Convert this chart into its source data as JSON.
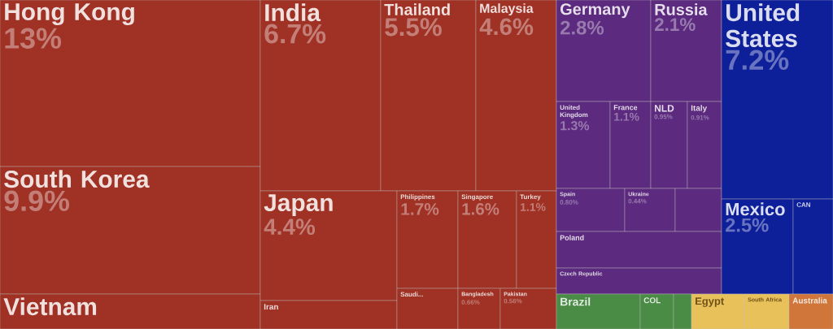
{
  "chart_data": {
    "type": "other",
    "categories": [
      "Hong Kong",
      "South Korea",
      "Vietnam",
      "India",
      "Thailand",
      "Malaysia",
      "Japan",
      "Philippines",
      "Singapore",
      "Turkey",
      "Iran",
      "Saudi...",
      "Bangladesh",
      "Pakistan",
      "Germany",
      "Russia",
      "United Kingdom",
      "France",
      "NLD",
      "Italy",
      "Spain",
      "Ukraine",
      null,
      "Poland",
      "Czech Republic",
      "United States",
      "Mexico",
      "CAN",
      "Brazil",
      "COL",
      null,
      "Egypt",
      "South Africa",
      "Australia"
    ],
    "values": [
      13,
      9.9,
      null,
      6.7,
      5.5,
      4.6,
      4.4,
      1.7,
      1.6,
      1.1,
      null,
      null,
      0.66,
      0.56,
      2.8,
      2.1,
      1.3,
      1.1,
      0.95,
      0.91,
      0.8,
      0.44,
      null,
      null,
      null,
      7.2,
      2.5,
      null,
      null,
      null,
      null,
      null,
      null,
      null
    ],
    "value_labels": [
      "13%",
      "9.9%",
      null,
      "6.7%",
      "5.5%",
      "4.6%",
      "4.4%",
      "1.7%",
      "1.6%",
      "1.1%",
      null,
      null,
      "0.66%",
      "0.56%",
      "2.8%",
      "2.1%",
      "1.3%",
      "1.1%",
      "0.95%",
      "0.91%",
      "0.80%",
      "0.44%",
      null,
      null,
      null,
      "7.2%",
      "2.5%",
      null,
      null,
      null,
      null,
      null,
      null,
      null
    ],
    "colors": [
      "#9f3125",
      "#9f3125",
      "#9f3125",
      "#9f3125",
      "#9f3125",
      "#9f3125",
      "#9f3125",
      "#9f3125",
      "#9f3125",
      "#9f3125",
      "#9f3125",
      "#9f3125",
      "#9f3125",
      "#9f3125",
      "#5c2a7e",
      "#5c2a7e",
      "#5c2a7e",
      "#5c2a7e",
      "#5c2a7e",
      "#5c2a7e",
      "#5c2a7e",
      "#5c2a7e",
      "#5c2a7e",
      "#5c2a7e",
      "#5c2a7e",
      "#0e1f9a",
      "#0e1f9a",
      "#0e1f9a",
      "#4a8b45",
      "#4a8b45",
      "#4a8b45",
      "#e8c15a",
      "#e8c15a",
      "#d0763a"
    ]
  }
}
